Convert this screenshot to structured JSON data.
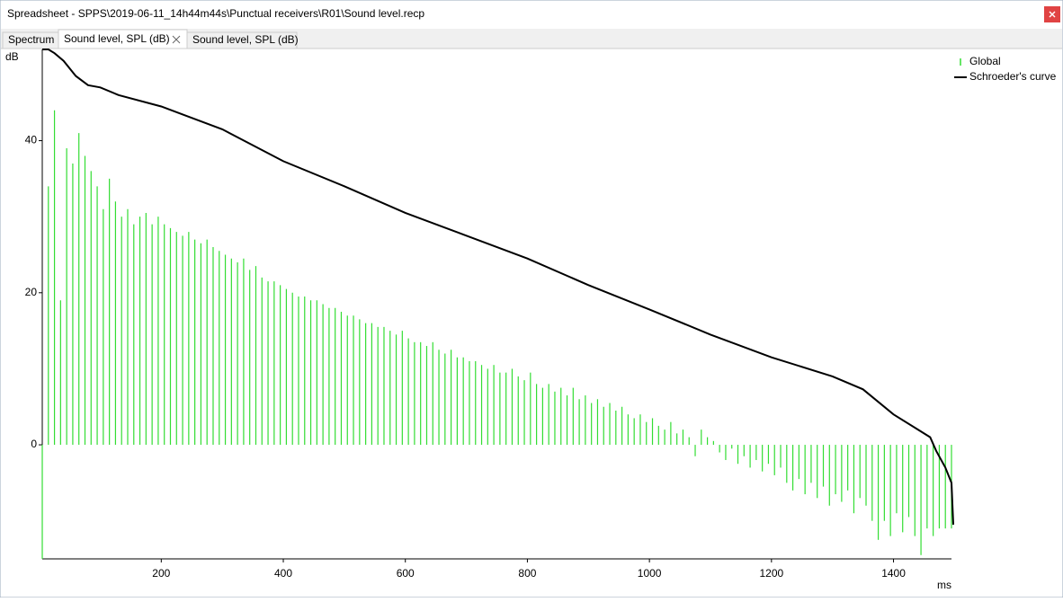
{
  "window": {
    "title": "Spreadsheet - SPPS\\2019-06-11_14h44m44s\\Punctual receivers\\R01\\Sound level.recp"
  },
  "tabs": [
    "Spectrum",
    "Sound level, SPL (dB)",
    "Sound level, SPL (dB)"
  ],
  "chart_data": {
    "type": "bar-line",
    "y_label": "dB",
    "x_label": "ms",
    "xlim": [
      5,
      1495
    ],
    "ylim": [
      -15,
      52
    ],
    "xticks": [
      200,
      400,
      600,
      800,
      1000,
      1200,
      1400
    ],
    "yticks": [
      0,
      20,
      40
    ],
    "legend": "top-right",
    "series": [
      {
        "name": "Global",
        "type": "bar",
        "color": "#33dd33",
        "x": [
          5,
          15,
          25,
          35,
          45,
          55,
          65,
          75,
          85,
          95,
          105,
          115,
          125,
          135,
          145,
          155,
          165,
          175,
          185,
          195,
          205,
          215,
          225,
          235,
          245,
          255,
          265,
          275,
          285,
          295,
          305,
          315,
          325,
          335,
          345,
          355,
          365,
          375,
          385,
          395,
          405,
          415,
          425,
          435,
          445,
          455,
          465,
          475,
          485,
          495,
          505,
          515,
          525,
          535,
          545,
          555,
          565,
          575,
          585,
          595,
          605,
          615,
          625,
          635,
          645,
          655,
          665,
          675,
          685,
          695,
          705,
          715,
          725,
          735,
          745,
          755,
          765,
          775,
          785,
          795,
          805,
          815,
          825,
          835,
          845,
          855,
          865,
          875,
          885,
          895,
          905,
          915,
          925,
          935,
          945,
          955,
          965,
          975,
          985,
          995,
          1005,
          1015,
          1025,
          1035,
          1045,
          1055,
          1065,
          1075,
          1085,
          1095,
          1105,
          1115,
          1125,
          1135,
          1145,
          1155,
          1165,
          1175,
          1185,
          1195,
          1205,
          1215,
          1225,
          1235,
          1245,
          1255,
          1265,
          1275,
          1285,
          1295,
          1305,
          1315,
          1325,
          1335,
          1345,
          1355,
          1365,
          1375,
          1385,
          1395,
          1405,
          1415,
          1425,
          1435,
          1445,
          1455,
          1465,
          1475,
          1485,
          1495
        ],
        "values": [
          -15,
          34,
          44,
          19,
          39,
          37,
          41,
          38,
          36,
          34,
          31,
          35,
          32,
          30,
          31,
          29,
          30,
          30.5,
          29,
          30,
          29,
          28.5,
          28,
          27.5,
          28,
          27,
          26.5,
          27,
          26,
          25.5,
          25,
          24.5,
          24,
          24.5,
          23,
          23.5,
          22,
          21.5,
          21.5,
          21,
          20.5,
          20,
          19.5,
          19.5,
          19,
          19,
          18.5,
          18,
          18,
          17.5,
          17,
          17,
          16.5,
          16,
          16,
          15.5,
          15.5,
          15,
          14.5,
          15,
          14,
          13.5,
          13.5,
          13,
          13.5,
          12.5,
          12,
          12.5,
          11.5,
          11.5,
          11,
          11,
          10.5,
          10,
          10.5,
          9.5,
          9.5,
          10,
          9,
          8.5,
          9.5,
          8,
          7.5,
          8,
          7,
          7.5,
          6.5,
          7.5,
          6,
          6.5,
          5.5,
          6,
          5,
          5.5,
          4.5,
          5,
          4,
          3.5,
          4,
          3,
          3.5,
          2.5,
          2,
          3,
          1.5,
          2,
          1,
          -1.5,
          2,
          1,
          0.5,
          -1,
          -2,
          -0.5,
          -2.5,
          -1.5,
          -3,
          -2,
          -3.5,
          -2.5,
          -4,
          -3,
          -5,
          -6,
          -4.5,
          -6.5,
          -5,
          -7,
          -5.5,
          -8,
          -6.5,
          -7.5,
          -6,
          -9,
          -7,
          -8,
          -10,
          -12.5,
          -10,
          -12,
          -9,
          -11.5,
          -9.5,
          -12,
          -14.5,
          -11,
          -12,
          -11,
          -11,
          -11
        ]
      },
      {
        "name": "Schroeder's curve",
        "type": "line",
        "color": "#000000",
        "x": [
          5,
          15,
          25,
          40,
          60,
          80,
          100,
          130,
          200,
          300,
          400,
          500,
          600,
          700,
          800,
          900,
          1000,
          1100,
          1200,
          1300,
          1350,
          1400,
          1440,
          1460,
          1470,
          1485,
          1495,
          1498
        ],
        "values": [
          52,
          52,
          51.5,
          50.5,
          48.5,
          47.3,
          47,
          46,
          44.5,
          41.5,
          37.3,
          34,
          30.5,
          27.5,
          24.5,
          21,
          17.8,
          14.5,
          11.5,
          9,
          7.3,
          4,
          2,
          1,
          -0.8,
          -3,
          -5,
          -10.5
        ]
      }
    ]
  }
}
